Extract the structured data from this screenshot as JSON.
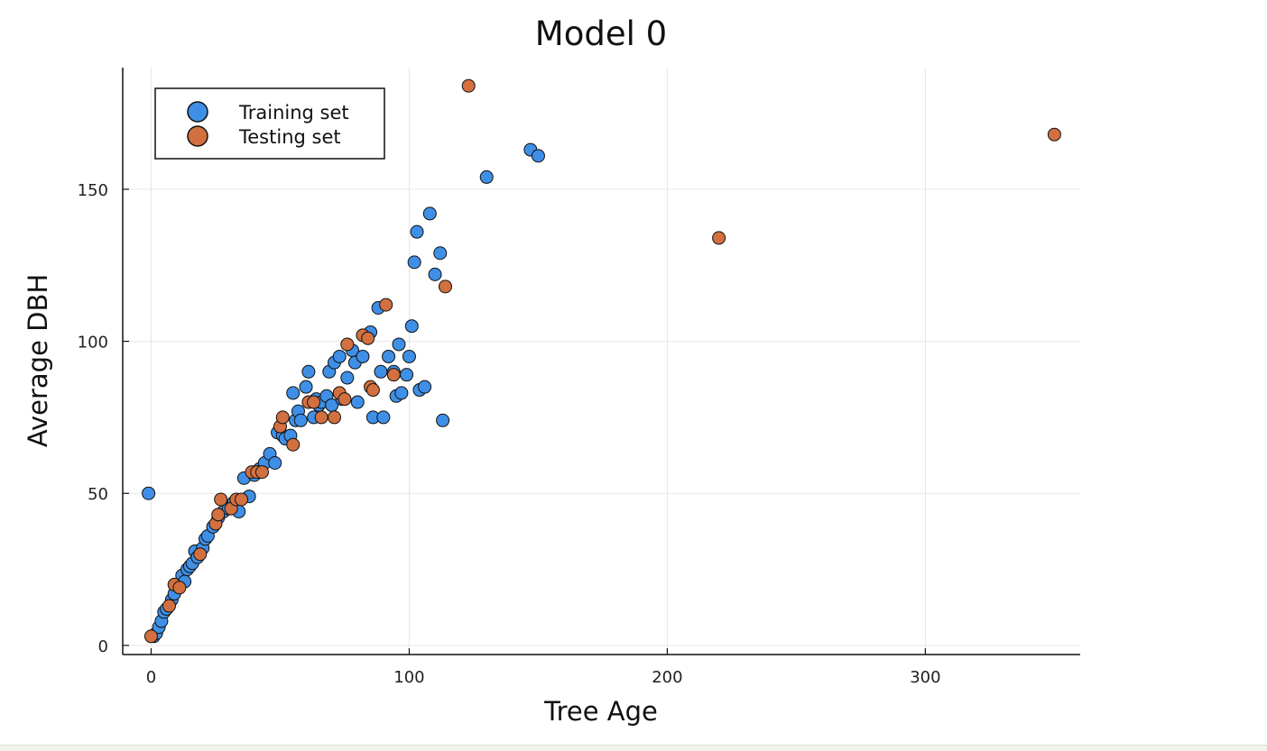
{
  "chart_data": {
    "type": "scatter",
    "title": "Model 0",
    "xlabel": "Tree Age",
    "ylabel": "Average DBH",
    "xlim": [
      -11,
      360
    ],
    "ylim": [
      -3,
      190
    ],
    "x_ticks": [
      0,
      100,
      200,
      300
    ],
    "y_ticks": [
      0,
      50,
      100,
      150
    ],
    "grid": true,
    "legend_position": "top-left",
    "series": [
      {
        "name": "Training set",
        "color": "#3f8fe6",
        "points": [
          [
            -1,
            50
          ],
          [
            1,
            3
          ],
          [
            2,
            4
          ],
          [
            3,
            6
          ],
          [
            4,
            8
          ],
          [
            5,
            11
          ],
          [
            6,
            12
          ],
          [
            8,
            15
          ],
          [
            9,
            17
          ],
          [
            11,
            20
          ],
          [
            12,
            23
          ],
          [
            13,
            21
          ],
          [
            14,
            25
          ],
          [
            15,
            26
          ],
          [
            16,
            27
          ],
          [
            17,
            31
          ],
          [
            18,
            29
          ],
          [
            20,
            32
          ],
          [
            21,
            35
          ],
          [
            22,
            36
          ],
          [
            24,
            39
          ],
          [
            26,
            42
          ],
          [
            28,
            44
          ],
          [
            30,
            45
          ],
          [
            32,
            47
          ],
          [
            34,
            44
          ],
          [
            36,
            55
          ],
          [
            38,
            49
          ],
          [
            40,
            56
          ],
          [
            42,
            58
          ],
          [
            44,
            60
          ],
          [
            46,
            63
          ],
          [
            48,
            60
          ],
          [
            49,
            70
          ],
          [
            51,
            69
          ],
          [
            52,
            68
          ],
          [
            54,
            69
          ],
          [
            55,
            83
          ],
          [
            56,
            74
          ],
          [
            57,
            77
          ],
          [
            58,
            74
          ],
          [
            60,
            85
          ],
          [
            61,
            90
          ],
          [
            63,
            75
          ],
          [
            64,
            81
          ],
          [
            65,
            79
          ],
          [
            66,
            80
          ],
          [
            68,
            82
          ],
          [
            69,
            90
          ],
          [
            70,
            79
          ],
          [
            71,
            93
          ],
          [
            73,
            95
          ],
          [
            74,
            81
          ],
          [
            76,
            88
          ],
          [
            78,
            97
          ],
          [
            79,
            93
          ],
          [
            80,
            80
          ],
          [
            82,
            95
          ],
          [
            85,
            103
          ],
          [
            86,
            75
          ],
          [
            88,
            111
          ],
          [
            89,
            90
          ],
          [
            90,
            75
          ],
          [
            92,
            95
          ],
          [
            94,
            90
          ],
          [
            95,
            82
          ],
          [
            96,
            99
          ],
          [
            97,
            83
          ],
          [
            99,
            89
          ],
          [
            100,
            95
          ],
          [
            101,
            105
          ],
          [
            102,
            126
          ],
          [
            103,
            136
          ],
          [
            104,
            84
          ],
          [
            106,
            85
          ],
          [
            108,
            142
          ],
          [
            110,
            122
          ],
          [
            112,
            129
          ],
          [
            113,
            74
          ],
          [
            130,
            154
          ],
          [
            147,
            163
          ],
          [
            150,
            161
          ]
        ]
      },
      {
        "name": "Testing set",
        "color": "#d2703f",
        "points": [
          [
            0,
            3
          ],
          [
            7,
            13
          ],
          [
            9,
            20
          ],
          [
            11,
            19
          ],
          [
            19,
            30
          ],
          [
            25,
            40
          ],
          [
            26,
            43
          ],
          [
            27,
            48
          ],
          [
            31,
            45
          ],
          [
            33,
            48
          ],
          [
            35,
            48
          ],
          [
            39,
            57
          ],
          [
            41,
            57
          ],
          [
            43,
            57
          ],
          [
            50,
            72
          ],
          [
            51,
            75
          ],
          [
            55,
            66
          ],
          [
            61,
            80
          ],
          [
            63,
            80
          ],
          [
            66,
            75
          ],
          [
            71,
            75
          ],
          [
            73,
            83
          ],
          [
            75,
            81
          ],
          [
            76,
            99
          ],
          [
            82,
            102
          ],
          [
            84,
            101
          ],
          [
            85,
            85
          ],
          [
            86,
            84
          ],
          [
            91,
            112
          ],
          [
            94,
            89
          ],
          [
            114,
            118
          ],
          [
            123,
            184
          ],
          [
            220,
            134
          ],
          [
            350,
            168
          ]
        ]
      }
    ]
  }
}
